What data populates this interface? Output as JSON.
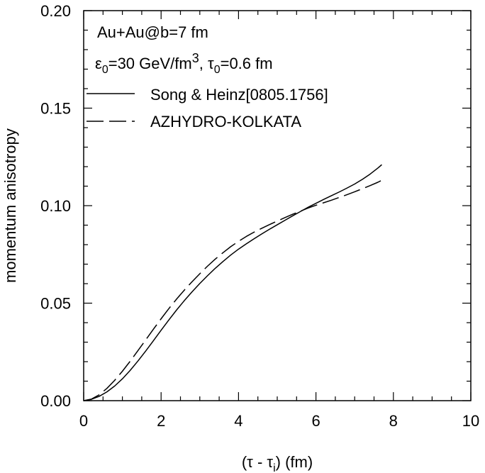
{
  "chart_data": {
    "type": "line",
    "xlabel": "(τ - τ",
    "xlabel_sub": "i",
    "xlabel_tail": ") (fm)",
    "ylabel": "momentum anisotropy",
    "xlim": [
      0,
      10
    ],
    "ylim": [
      0,
      0.2
    ],
    "x_ticks": [
      "0",
      "2",
      "4",
      "6",
      "8",
      "10"
    ],
    "y_ticks": [
      "0.00",
      "0.05",
      "0.10",
      "0.15",
      "0.20"
    ],
    "annotations": {
      "line1": "Au+Au@b=7 fm",
      "line2_eps": "ε",
      "line2_eps_sub": "0",
      "line2_a": "=30 GeV/fm",
      "line2_sup": "3",
      "line2_b": ", ",
      "line2_tau": "τ",
      "line2_tau_sub": "0",
      "line2_c": "=0.6 fm"
    },
    "series": [
      {
        "name": "Song & Heinz[0805.1756]",
        "style": "solid",
        "x": [
          0,
          0.2,
          0.4,
          0.6,
          0.8,
          1.0,
          1.2,
          1.4,
          1.6,
          1.8,
          2.0,
          2.2,
          2.4,
          2.6,
          2.8,
          3.0,
          3.2,
          3.4,
          3.6,
          3.8,
          4.0,
          4.2,
          4.4,
          4.6,
          4.8,
          5.0,
          5.2,
          5.4,
          5.6,
          5.8,
          6.0,
          6.2,
          6.4,
          6.6,
          6.8,
          7.0,
          7.2,
          7.4,
          7.6,
          7.7
        ],
        "y": [
          0,
          0.0007,
          0.0022,
          0.0045,
          0.0075,
          0.0112,
          0.0155,
          0.0203,
          0.0254,
          0.0307,
          0.0361,
          0.0414,
          0.0465,
          0.0513,
          0.0558,
          0.0601,
          0.0641,
          0.0679,
          0.0714,
          0.0747,
          0.0777,
          0.0804,
          0.083,
          0.0855,
          0.0879,
          0.0902,
          0.0925,
          0.0948,
          0.097,
          0.0992,
          0.1012,
          0.1032,
          0.1051,
          0.107,
          0.109,
          0.1111,
          0.1135,
          0.1162,
          0.1193,
          0.121
        ]
      },
      {
        "name": "AZHYDRO-KOLKATA",
        "style": "dashed",
        "x": [
          0,
          0.2,
          0.4,
          0.6,
          0.8,
          1.0,
          1.2,
          1.4,
          1.6,
          1.8,
          2.0,
          2.2,
          2.4,
          2.6,
          2.8,
          3.0,
          3.2,
          3.4,
          3.6,
          3.8,
          4.0,
          4.2,
          4.4,
          4.6,
          4.8,
          5.0,
          5.2,
          5.4,
          5.6,
          5.8,
          6.0,
          6.2,
          6.4,
          6.6,
          6.8,
          7.0,
          7.2,
          7.4,
          7.6,
          7.7
        ],
        "y": [
          0,
          0.0008,
          0.003,
          0.0063,
          0.0104,
          0.0151,
          0.0202,
          0.0256,
          0.0311,
          0.0366,
          0.042,
          0.0472,
          0.0521,
          0.0567,
          0.061,
          0.0651,
          0.069,
          0.0726,
          0.0759,
          0.079,
          0.0817,
          0.0842,
          0.0864,
          0.0884,
          0.0903,
          0.0921,
          0.0939,
          0.0956,
          0.0972,
          0.0988,
          0.1002,
          0.1015,
          0.1028,
          0.1042,
          0.1056,
          0.1071,
          0.1087,
          0.1103,
          0.112,
          0.113
        ]
      }
    ]
  }
}
